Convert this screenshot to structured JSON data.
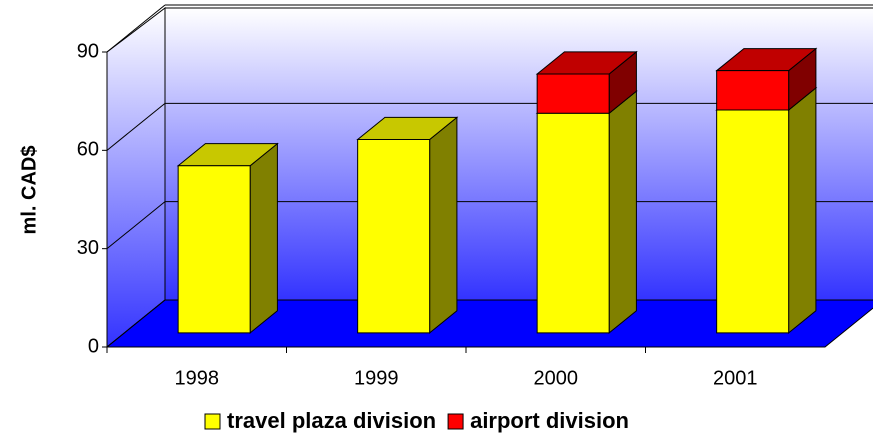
{
  "chart_data": {
    "type": "bar3d_stacked",
    "categories": [
      "1998",
      "1999",
      "2000",
      "2001"
    ],
    "series": [
      {
        "name": "travel plaza division",
        "color": "#ffff00",
        "side": "#808000",
        "top": "#c8c800",
        "values": [
          51,
          59,
          67,
          68
        ]
      },
      {
        "name": "airport division",
        "color": "#ff0000",
        "side": "#800000",
        "top": "#c00000",
        "values": [
          0,
          0,
          12,
          12
        ]
      }
    ],
    "ylabel": "ml. CAD$",
    "ylim": [
      0,
      90
    ],
    "yticks": [
      0,
      30,
      60,
      90
    ],
    "grid": true,
    "legend": "bottom"
  }
}
